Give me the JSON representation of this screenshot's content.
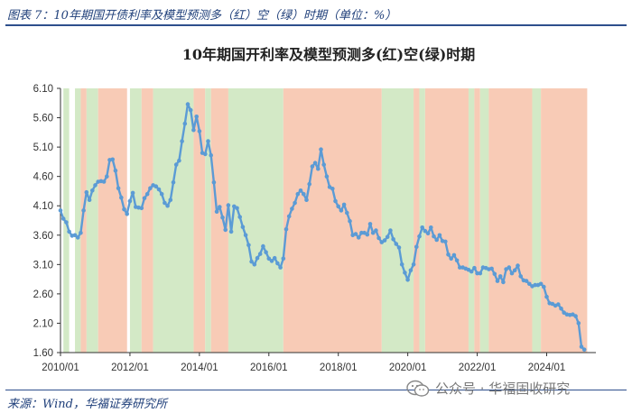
{
  "figure": {
    "title": "图表 7：10年期国开债利率及模型预测多（红）空（绿）时期（单位：%）",
    "source": "来源：Wind，华福证券研究所",
    "watermark": "公众号 · 华福固收研究",
    "watermark_icon": "wechat-icon"
  },
  "colors": {
    "line": "#5b9bd5",
    "red_period": "#f8cbb6",
    "green_period": "#d3e9c6",
    "axis": "#333333",
    "header": "#1f3f7a"
  },
  "chart_data": {
    "type": "line",
    "title": "10年期国开利率及模型预测多(红)空(绿)时期",
    "xlabel": "",
    "ylabel": "",
    "ylim": [
      1.6,
      6.1
    ],
    "yticks": [
      "6.10",
      "5.60",
      "5.10",
      "4.60",
      "4.10",
      "3.60",
      "3.10",
      "2.60",
      "2.10",
      "1.60"
    ],
    "xlim": [
      "2010-01",
      "2025-06"
    ],
    "xticks": [
      "2010/01",
      "2012/01",
      "2014/01",
      "2016/01",
      "2018/01",
      "2020/01",
      "2022/01",
      "2024/01"
    ],
    "grid": false,
    "legend": "none",
    "series": [
      {
        "x": [
          "2010-01",
          "2010-02",
          "2010-03",
          "2010-04",
          "2010-05",
          "2010-06",
          "2010-07",
          "2010-08",
          "2010-09",
          "2010-10",
          "2010-11",
          "2010-12",
          "2011-01",
          "2011-02",
          "2011-03",
          "2011-04",
          "2011-05",
          "2011-06",
          "2011-07",
          "2011-08",
          "2011-09",
          "2011-10",
          "2011-11",
          "2011-12",
          "2012-01",
          "2012-02",
          "2012-03",
          "2012-04",
          "2012-05",
          "2012-06",
          "2012-07",
          "2012-08",
          "2012-09",
          "2012-10",
          "2012-11",
          "2012-12",
          "2013-01",
          "2013-02",
          "2013-03",
          "2013-04",
          "2013-05",
          "2013-06",
          "2013-07",
          "2013-08",
          "2013-09",
          "2013-10",
          "2013-11",
          "2013-12",
          "2014-01",
          "2014-02",
          "2014-03",
          "2014-04",
          "2014-05",
          "2014-06",
          "2014-07",
          "2014-08",
          "2014-09",
          "2014-10",
          "2014-11",
          "2014-12",
          "2015-01",
          "2015-02",
          "2015-03",
          "2015-04",
          "2015-05",
          "2015-06",
          "2015-07",
          "2015-08",
          "2015-09",
          "2015-10",
          "2015-11",
          "2015-12",
          "2016-01",
          "2016-02",
          "2016-03",
          "2016-04",
          "2016-05",
          "2016-06",
          "2016-07",
          "2016-08",
          "2016-09",
          "2016-10",
          "2016-11",
          "2016-12",
          "2017-01",
          "2017-02",
          "2017-03",
          "2017-04",
          "2017-05",
          "2017-06",
          "2017-07",
          "2017-08",
          "2017-09",
          "2017-10",
          "2017-11",
          "2017-12",
          "2018-01",
          "2018-02",
          "2018-03",
          "2018-04",
          "2018-05",
          "2018-06",
          "2018-07",
          "2018-08",
          "2018-09",
          "2018-10",
          "2018-11",
          "2018-12",
          "2019-01",
          "2019-02",
          "2019-03",
          "2019-04",
          "2019-05",
          "2019-06",
          "2019-07",
          "2019-08",
          "2019-09",
          "2019-10",
          "2019-11",
          "2019-12",
          "2020-01",
          "2020-02",
          "2020-03",
          "2020-04",
          "2020-05",
          "2020-06",
          "2020-07",
          "2020-08",
          "2020-09",
          "2020-10",
          "2020-11",
          "2020-12",
          "2021-01",
          "2021-02",
          "2021-03",
          "2021-04",
          "2021-05",
          "2021-06",
          "2021-07",
          "2021-08",
          "2021-09",
          "2021-10",
          "2021-11",
          "2021-12",
          "2022-01",
          "2022-02",
          "2022-03",
          "2022-04",
          "2022-05",
          "2022-06",
          "2022-07",
          "2022-08",
          "2022-09",
          "2022-10",
          "2022-11",
          "2022-12",
          "2023-01",
          "2023-02",
          "2023-03",
          "2023-04",
          "2023-05",
          "2023-06",
          "2023-07",
          "2023-08",
          "2023-09",
          "2023-10",
          "2023-11",
          "2023-12",
          "2024-01",
          "2024-02",
          "2024-03",
          "2024-04",
          "2024-05",
          "2024-06",
          "2024-07",
          "2024-08",
          "2024-09",
          "2024-10",
          "2024-11",
          "2024-12",
          "2025-01",
          "2025-02"
        ],
        "y": [
          4.02,
          3.88,
          3.82,
          3.66,
          3.59,
          3.6,
          3.56,
          3.64,
          4.02,
          4.33,
          4.2,
          4.36,
          4.45,
          4.51,
          4.52,
          4.51,
          4.6,
          4.88,
          4.89,
          4.7,
          4.4,
          4.24,
          4.04,
          3.96,
          4.18,
          4.32,
          4.08,
          4.07,
          4.06,
          4.23,
          4.3,
          4.4,
          4.45,
          4.43,
          4.38,
          4.3,
          4.15,
          4.1,
          4.2,
          4.5,
          4.8,
          4.87,
          5.2,
          5.5,
          5.83,
          5.73,
          5.39,
          5.62,
          5.37,
          5.0,
          4.98,
          5.2,
          4.96,
          4.5,
          4.0,
          4.08,
          3.9,
          3.69,
          4.11,
          3.66,
          4.09,
          4.06,
          3.91,
          3.74,
          3.6,
          3.43,
          3.15,
          3.1,
          3.21,
          3.28,
          3.41,
          3.31,
          3.2,
          3.16,
          3.21,
          3.12,
          3.05,
          3.2,
          3.7,
          3.92,
          4.05,
          4.15,
          4.3,
          4.36,
          4.3,
          4.2,
          4.47,
          4.77,
          4.83,
          4.73,
          5.06,
          4.8,
          4.6,
          4.42,
          4.39,
          4.18,
          4.09,
          4.02,
          4.12,
          3.98,
          3.84,
          3.6,
          3.62,
          3.56,
          3.64,
          3.64,
          3.61,
          3.79,
          3.64,
          3.68,
          3.55,
          3.48,
          3.51,
          3.57,
          3.68,
          3.53,
          3.45,
          3.39,
          3.1,
          2.96,
          2.84,
          3.0,
          3.1,
          3.4,
          3.58,
          3.73,
          3.67,
          3.63,
          3.73,
          3.58,
          3.52,
          3.6,
          3.5,
          3.49,
          3.27,
          3.2,
          3.26,
          3.17,
          3.05,
          3.05,
          3.03,
          3.01,
          2.98,
          3.04,
          2.95,
          2.95,
          3.05,
          3.04,
          3.02,
          3.03,
          2.94,
          2.82,
          2.9,
          2.8,
          3.02,
          3.05,
          2.95,
          3.0,
          3.08,
          2.9,
          2.83,
          2.82,
          2.77,
          2.73,
          2.75,
          2.75,
          2.77,
          2.72,
          2.55,
          2.44,
          2.43,
          2.4,
          2.42,
          2.35,
          2.28,
          2.25,
          2.24,
          2.25,
          2.22,
          2.1,
          1.7,
          1.65
        ]
      }
    ],
    "periods": [
      {
        "kind": "green",
        "start": "2010-02",
        "end": "2010-04"
      },
      {
        "kind": "green",
        "start": "2010-06",
        "end": "2010-08"
      },
      {
        "kind": "red",
        "start": "2010-08",
        "end": "2010-10"
      },
      {
        "kind": "green",
        "start": "2010-10",
        "end": "2011-02"
      },
      {
        "kind": "red",
        "start": "2011-02",
        "end": "2011-12"
      },
      {
        "kind": "green",
        "start": "2012-01",
        "end": "2012-05"
      },
      {
        "kind": "red",
        "start": "2012-05",
        "end": "2012-09"
      },
      {
        "kind": "green",
        "start": "2012-09",
        "end": "2013-11"
      },
      {
        "kind": "red",
        "start": "2013-11",
        "end": "2014-03"
      },
      {
        "kind": "green",
        "start": "2014-03",
        "end": "2014-05"
      },
      {
        "kind": "red",
        "start": "2014-05",
        "end": "2014-11"
      },
      {
        "kind": "green",
        "start": "2014-11",
        "end": "2016-06"
      },
      {
        "kind": "red",
        "start": "2016-06",
        "end": "2019-04"
      },
      {
        "kind": "green",
        "start": "2019-04",
        "end": "2020-03"
      },
      {
        "kind": "red",
        "start": "2020-03",
        "end": "2020-05"
      },
      {
        "kind": "green",
        "start": "2020-05",
        "end": "2020-07"
      },
      {
        "kind": "red",
        "start": "2020-07",
        "end": "2021-10"
      },
      {
        "kind": "green",
        "start": "2021-10",
        "end": "2021-12"
      },
      {
        "kind": "red",
        "start": "2021-12",
        "end": "2022-02"
      },
      {
        "kind": "green",
        "start": "2022-02",
        "end": "2022-05"
      },
      {
        "kind": "red",
        "start": "2022-05",
        "end": "2023-08"
      },
      {
        "kind": "green",
        "start": "2023-08",
        "end": "2023-11"
      },
      {
        "kind": "red",
        "start": "2023-11",
        "end": "2025-03"
      }
    ]
  }
}
